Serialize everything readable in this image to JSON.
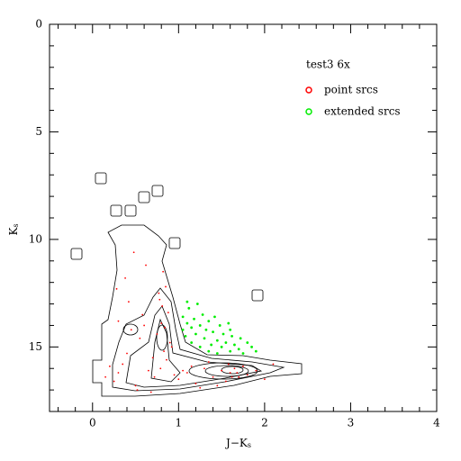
{
  "chart_data": {
    "type": "scatter",
    "title": "test3 6x",
    "xlabel": [
      "J−K",
      "s"
    ],
    "ylabel": [
      "K",
      "s"
    ],
    "xlim": [
      -0.5,
      4
    ],
    "ylim": [
      18,
      0
    ],
    "inverted_y": true,
    "xticks": [
      0,
      1,
      2,
      3,
      4
    ],
    "yticks": [
      0,
      5,
      10,
      15
    ],
    "xminorticks": [
      -0.4,
      -0.2,
      0.2,
      0.4,
      0.6,
      0.8,
      1.2,
      1.4,
      1.6,
      1.8,
      2.2,
      2.4,
      2.6,
      2.8,
      3.2,
      3.4,
      3.6,
      3.8
    ],
    "yminorticks": [
      1,
      2,
      3,
      4,
      6,
      7,
      8,
      9,
      11,
      12,
      13,
      14,
      16,
      17
    ],
    "series": [
      {
        "name": "point srcs",
        "color": "#ff0000",
        "x": [
          0.82,
          0.85,
          0.78,
          0.88,
          0.8,
          0.75,
          0.9,
          0.83,
          0.86,
          0.79,
          0.72,
          0.92,
          0.84,
          0.81,
          0.77,
          0.6,
          0.55,
          0.45,
          0.4,
          0.35,
          0.3,
          0.25,
          0.5,
          0.65,
          0.7,
          0.2,
          0.15,
          0.3,
          0.42,
          0.58,
          1.0,
          1.1,
          1.2,
          1.3,
          1.4,
          1.5,
          1.55,
          1.6,
          1.65,
          1.7,
          1.75,
          1.8,
          1.9,
          2.0,
          2.1,
          1.45,
          1.35,
          1.25,
          1.15,
          1.05,
          0.95,
          1.62,
          1.68,
          1.58,
          0.62,
          0.48,
          0.38,
          0.28,
          0.52,
          0.68
        ],
        "y": [
          11.5,
          12.2,
          12.8,
          13.4,
          13.9,
          14.4,
          14.8,
          15.2,
          15.6,
          16.0,
          16.4,
          15.0,
          14.1,
          13.1,
          12.5,
          14.0,
          14.6,
          14.2,
          15.3,
          15.8,
          16.2,
          16.6,
          16.8,
          16.1,
          15.5,
          15.9,
          16.4,
          13.8,
          12.9,
          13.5,
          16.5,
          16.2,
          16.7,
          16.0,
          16.4,
          16.1,
          16.6,
          16.2,
          16.0,
          16.4,
          15.9,
          16.3,
          16.1,
          16.5,
          15.8,
          16.8,
          15.7,
          16.9,
          15.9,
          16.1,
          16.3,
          16.4,
          16.2,
          15.8,
          11.2,
          10.6,
          11.8,
          12.3,
          17.0,
          17.1
        ]
      },
      {
        "name": "extended srcs",
        "color": "#00ee00",
        "x": [
          1.05,
          1.1,
          1.12,
          1.15,
          1.18,
          1.2,
          1.22,
          1.25,
          1.28,
          1.3,
          1.32,
          1.35,
          1.38,
          1.4,
          1.42,
          1.45,
          1.48,
          1.5,
          1.52,
          1.55,
          1.58,
          1.6,
          1.62,
          1.65,
          1.7,
          1.72,
          1.75,
          1.8,
          1.85,
          1.9,
          1.08,
          1.15,
          1.25,
          1.05,
          1.35,
          1.45,
          1.1,
          1.6
        ],
        "y": [
          13.6,
          13.9,
          13.2,
          14.1,
          13.7,
          14.4,
          13.0,
          14.0,
          13.5,
          14.6,
          14.2,
          13.8,
          14.9,
          14.3,
          13.6,
          14.7,
          14.0,
          15.0,
          14.4,
          14.8,
          13.9,
          15.2,
          14.5,
          14.9,
          15.1,
          14.6,
          15.3,
          14.8,
          15.0,
          15.2,
          14.5,
          14.8,
          15.0,
          14.2,
          15.2,
          15.3,
          12.9,
          14.2
        ]
      }
    ]
  }
}
